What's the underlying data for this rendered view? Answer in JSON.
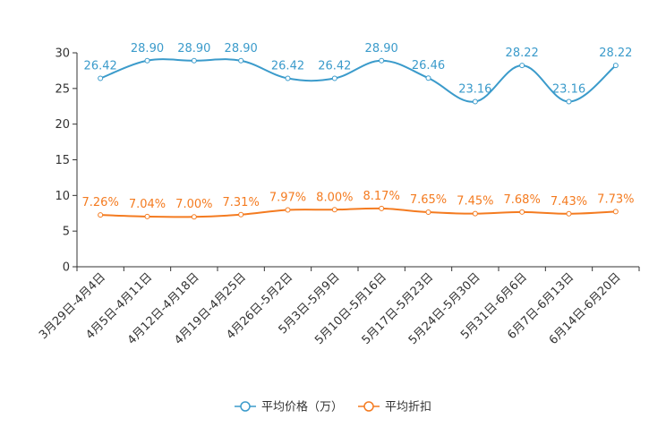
{
  "chart_data": {
    "type": "line",
    "title": "",
    "xlabel": "",
    "ylabel": "",
    "ylim": [
      0,
      30
    ],
    "yticks": [
      0,
      5,
      10,
      15,
      20,
      25,
      30
    ],
    "grid": false,
    "legend_position": "bottom-center",
    "categories": [
      "3月29日-4月4日",
      "4月5日-4月11日",
      "4月12日-4月18日",
      "4月19日-4月25日",
      "4月26日-5月2日",
      "5月3日-5月9日",
      "5月10日-5月16日",
      "5月17日-5月23日",
      "5月24日-5月30日",
      "5月31日-6月6日",
      "6月7日-6月13日",
      "6月14日-6月20日"
    ],
    "series": [
      {
        "name": "平均价格（万）",
        "color": "#3b9bcb",
        "values": [
          26.42,
          28.9,
          28.9,
          28.9,
          26.42,
          26.42,
          28.9,
          26.46,
          23.16,
          28.22,
          23.16,
          28.22
        ],
        "labels": [
          "26.42",
          "28.90",
          "28.90",
          "28.90",
          "26.42",
          "26.42",
          "28.90",
          "26.46",
          "23.16",
          "28.22",
          "23.16",
          "28.22"
        ]
      },
      {
        "name": "平均折扣",
        "color": "#f47b20",
        "values": [
          7.26,
          7.04,
          7.0,
          7.31,
          7.97,
          8.0,
          8.17,
          7.65,
          7.45,
          7.68,
          7.43,
          7.73
        ],
        "labels": [
          "7.26%",
          "7.04%",
          "7.00%",
          "7.31%",
          "7.97%",
          "8.00%",
          "8.17%",
          "7.65%",
          "7.45%",
          "7.68%",
          "7.43%",
          "7.73%"
        ]
      }
    ]
  }
}
